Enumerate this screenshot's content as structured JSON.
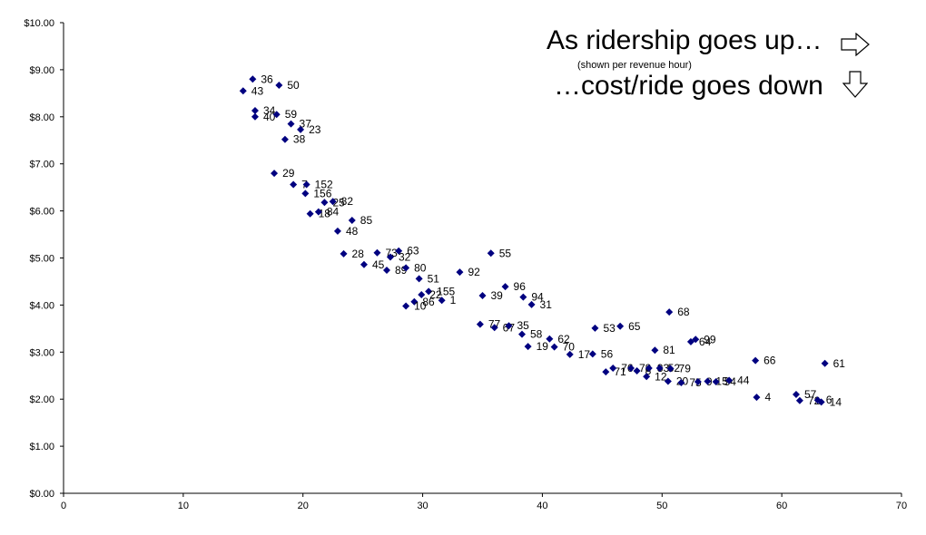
{
  "annotations": {
    "line1": "As ridership goes up…",
    "line2": "(shown per revenue hour)",
    "line3": "…cost/ride goes down",
    "arrow1_icon": "right-arrow-icon",
    "arrow2_icon": "down-arrow-icon"
  },
  "chart_data": {
    "type": "scatter",
    "title": "",
    "xlabel": "",
    "ylabel": "",
    "xlim": [
      0,
      70
    ],
    "ylim": [
      0,
      10
    ],
    "x_ticks": [
      "0",
      "10",
      "20",
      "30",
      "40",
      "50",
      "60",
      "70"
    ],
    "y_ticks": [
      "$0.00",
      "$1.00",
      "$2.00",
      "$3.00",
      "$4.00",
      "$5.00",
      "$6.00",
      "$7.00",
      "$8.00",
      "$9.00",
      "$10.00"
    ],
    "grid": false,
    "marker_color": "#000080",
    "points": [
      {
        "label": "36",
        "x": 15.8,
        "y": 8.8
      },
      {
        "label": "43",
        "x": 15.0,
        "y": 8.55
      },
      {
        "label": "50",
        "x": 18.0,
        "y": 8.67
      },
      {
        "label": "34",
        "x": 16.0,
        "y": 8.13
      },
      {
        "label": "40",
        "x": 16.0,
        "y": 8.0
      },
      {
        "label": "59",
        "x": 17.8,
        "y": 8.05
      },
      {
        "label": "37",
        "x": 19.0,
        "y": 7.85
      },
      {
        "label": "23",
        "x": 19.8,
        "y": 7.73
      },
      {
        "label": "38",
        "x": 18.5,
        "y": 7.52
      },
      {
        "label": "29",
        "x": 17.6,
        "y": 6.8
      },
      {
        "label": "7",
        "x": 19.2,
        "y": 6.56
      },
      {
        "label": "152",
        "x": 20.3,
        "y": 6.56
      },
      {
        "label": "156",
        "x": 20.2,
        "y": 6.37
      },
      {
        "label": "25",
        "x": 21.8,
        "y": 6.18
      },
      {
        "label": "82",
        "x": 22.5,
        "y": 6.2
      },
      {
        "label": "18",
        "x": 20.6,
        "y": 5.94
      },
      {
        "label": "84",
        "x": 21.3,
        "y": 5.98
      },
      {
        "label": "85",
        "x": 24.1,
        "y": 5.8
      },
      {
        "label": "48",
        "x": 22.9,
        "y": 5.57
      },
      {
        "label": "28",
        "x": 23.4,
        "y": 5.09
      },
      {
        "label": "73",
        "x": 26.2,
        "y": 5.11
      },
      {
        "label": "63",
        "x": 28.0,
        "y": 5.15
      },
      {
        "label": "32",
        "x": 27.3,
        "y": 5.02
      },
      {
        "label": "45",
        "x": 25.1,
        "y": 4.86
      },
      {
        "label": "89",
        "x": 27.0,
        "y": 4.74
      },
      {
        "label": "80",
        "x": 28.6,
        "y": 4.79
      },
      {
        "label": "55",
        "x": 35.7,
        "y": 5.1
      },
      {
        "label": "92",
        "x": 33.1,
        "y": 4.7
      },
      {
        "label": "51",
        "x": 29.7,
        "y": 4.56
      },
      {
        "label": "96",
        "x": 36.9,
        "y": 4.39
      },
      {
        "label": "39",
        "x": 35.0,
        "y": 4.2
      },
      {
        "label": "94",
        "x": 38.4,
        "y": 4.17
      },
      {
        "label": "31",
        "x": 39.1,
        "y": 4.01
      },
      {
        "label": "155",
        "x": 30.5,
        "y": 4.29
      },
      {
        "label": "22",
        "x": 29.9,
        "y": 4.22
      },
      {
        "label": "86",
        "x": 29.3,
        "y": 4.07
      },
      {
        "label": "1",
        "x": 31.6,
        "y": 4.1
      },
      {
        "label": "10",
        "x": 28.6,
        "y": 3.98
      },
      {
        "label": "68",
        "x": 50.6,
        "y": 3.85
      },
      {
        "label": "77",
        "x": 34.8,
        "y": 3.59
      },
      {
        "label": "67",
        "x": 36.0,
        "y": 3.52
      },
      {
        "label": "35",
        "x": 37.2,
        "y": 3.56
      },
      {
        "label": "53",
        "x": 44.4,
        "y": 3.51
      },
      {
        "label": "65",
        "x": 46.5,
        "y": 3.55
      },
      {
        "label": "58",
        "x": 38.3,
        "y": 3.38
      },
      {
        "label": "62",
        "x": 40.6,
        "y": 3.28
      },
      {
        "label": "99",
        "x": 52.8,
        "y": 3.27
      },
      {
        "label": "64",
        "x": 52.4,
        "y": 3.22
      },
      {
        "label": "19",
        "x": 38.8,
        "y": 3.12
      },
      {
        "label": "70",
        "x": 41.0,
        "y": 3.11
      },
      {
        "label": "81",
        "x": 49.4,
        "y": 3.04
      },
      {
        "label": "17",
        "x": 42.3,
        "y": 2.95
      },
      {
        "label": "56",
        "x": 44.2,
        "y": 2.96
      },
      {
        "label": "66",
        "x": 57.8,
        "y": 2.82
      },
      {
        "label": "61",
        "x": 63.6,
        "y": 2.76
      },
      {
        "label": "71",
        "x": 45.3,
        "y": 2.58
      },
      {
        "label": "76",
        "x": 45.9,
        "y": 2.66
      },
      {
        "label": "78",
        "x": 47.4,
        "y": 2.66
      },
      {
        "label": "8",
        "x": 47.9,
        "y": 2.6
      },
      {
        "label": "83",
        "x": 48.9,
        "y": 2.66
      },
      {
        "label": "52",
        "x": 49.8,
        "y": 2.66
      },
      {
        "label": "79",
        "x": 50.7,
        "y": 2.65
      },
      {
        "label": "12",
        "x": 48.7,
        "y": 2.48
      },
      {
        "label": "20",
        "x": 50.5,
        "y": 2.38
      },
      {
        "label": "75",
        "x": 51.6,
        "y": 2.35
      },
      {
        "label": "9",
        "x": 53.0,
        "y": 2.37
      },
      {
        "label": "15",
        "x": 53.8,
        "y": 2.38
      },
      {
        "label": "54",
        "x": 54.5,
        "y": 2.37
      },
      {
        "label": "44",
        "x": 55.6,
        "y": 2.4
      },
      {
        "label": "4",
        "x": 57.9,
        "y": 2.04
      },
      {
        "label": "57",
        "x": 61.2,
        "y": 2.1
      },
      {
        "label": "72",
        "x": 61.5,
        "y": 1.97
      },
      {
        "label": "6",
        "x": 63.0,
        "y": 1.98
      },
      {
        "label": "14",
        "x": 63.3,
        "y": 1.94
      }
    ]
  }
}
